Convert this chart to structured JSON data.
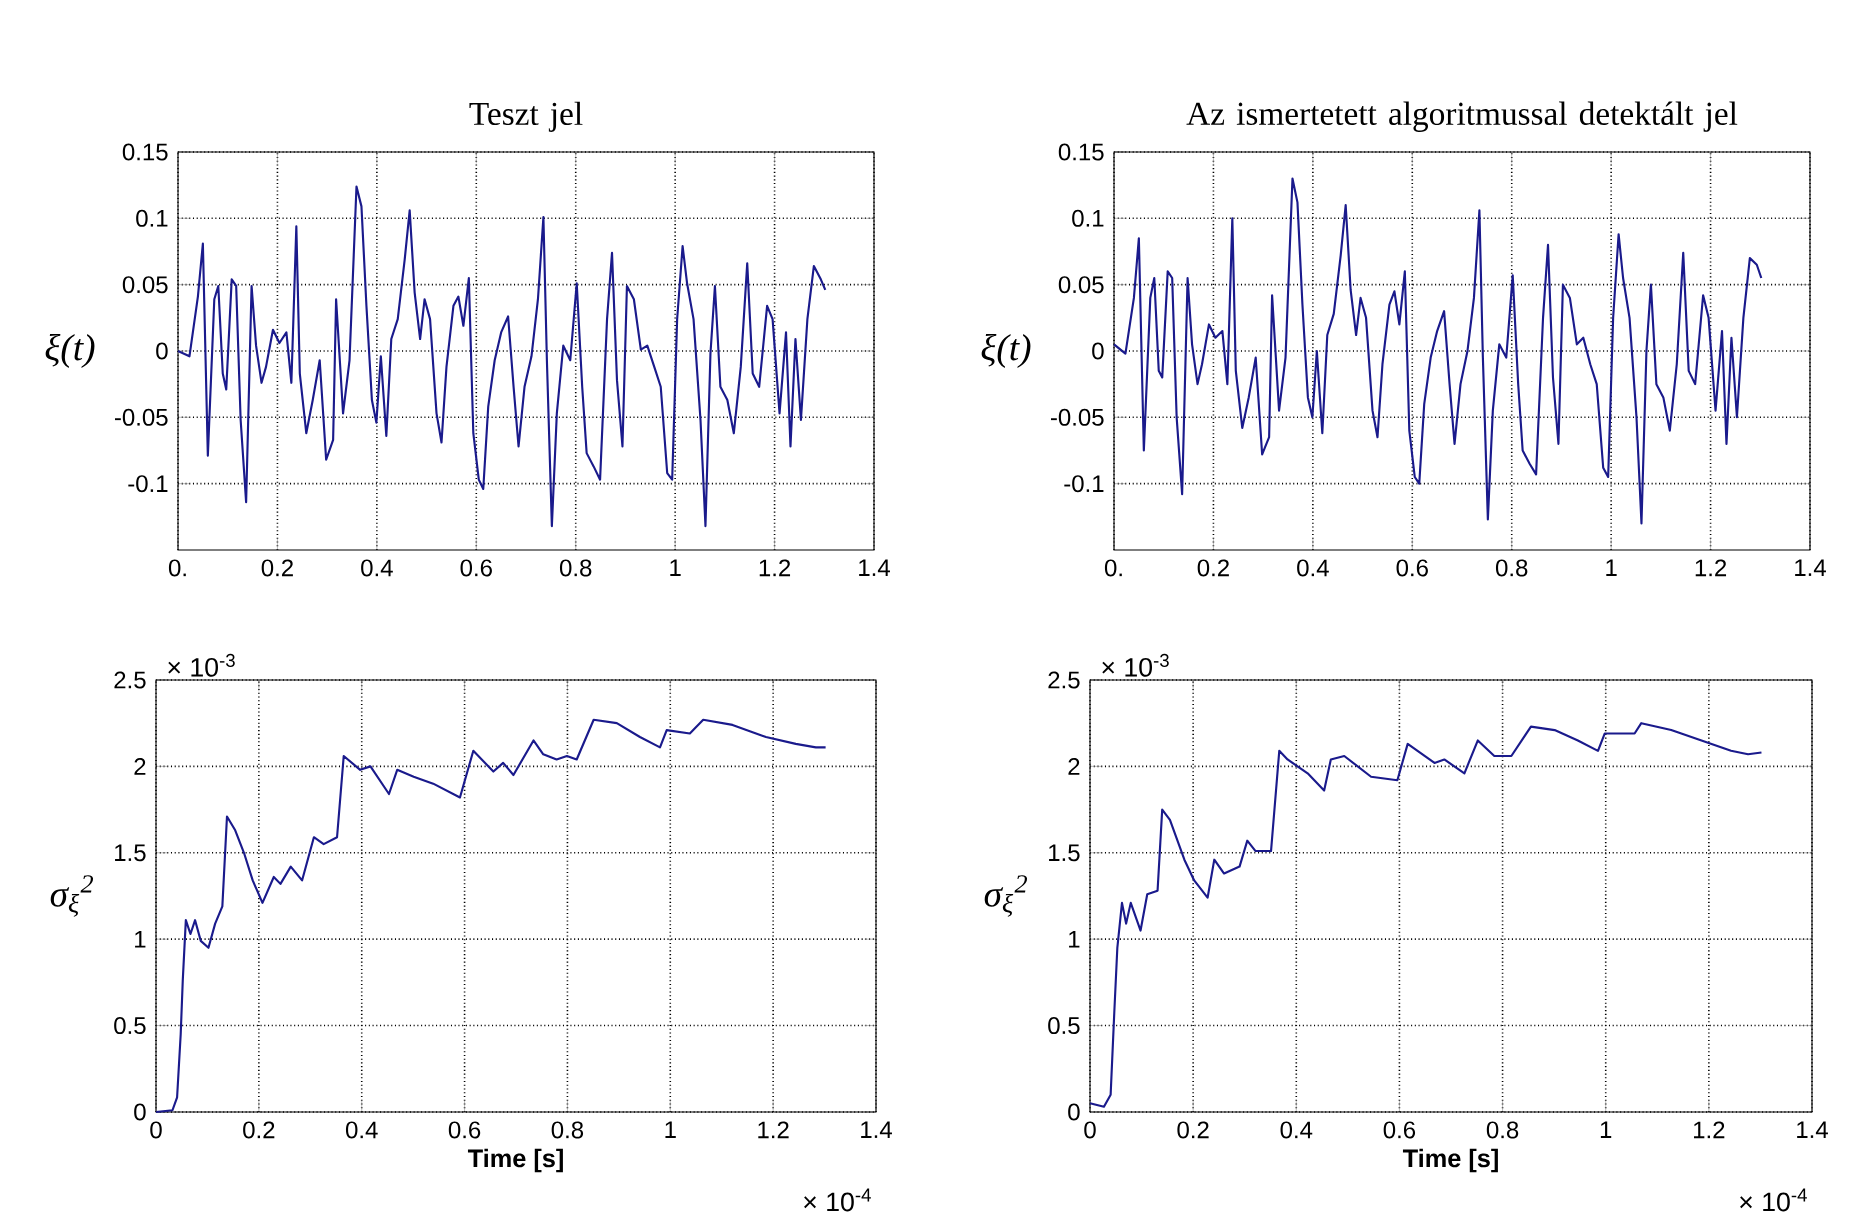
{
  "chart_data": [
    {
      "type": "line",
      "title": "Teszt jel",
      "ylabel": "ξ(t)",
      "grid": true,
      "xlim": [
        0,
        1.4
      ],
      "ylim": [
        -0.15,
        0.15
      ],
      "xticks": [
        {
          "value": 0,
          "label": "0."
        },
        0.2,
        0.4,
        0.6,
        0.8,
        1,
        1.2,
        1.4
      ],
      "yticks": [
        -0.1,
        -0.05,
        0,
        0.05,
        0.1,
        0.15
      ],
      "x": [
        0,
        0.023,
        0.04,
        0.05,
        0.06,
        0.073,
        0.081,
        0.09,
        0.097,
        0.108,
        0.117,
        0.126,
        0.137,
        0.148,
        0.157,
        0.168,
        0.177,
        0.191,
        0.204,
        0.218,
        0.228,
        0.238,
        0.245,
        0.258,
        0.271,
        0.285,
        0.298,
        0.312,
        0.318,
        0.332,
        0.345,
        0.359,
        0.369,
        0.379,
        0.39,
        0.399,
        0.408,
        0.419,
        0.429,
        0.442,
        0.456,
        0.466,
        0.476,
        0.487,
        0.496,
        0.507,
        0.52,
        0.53,
        0.54,
        0.554,
        0.564,
        0.574,
        0.585,
        0.594,
        0.605,
        0.614,
        0.624,
        0.637,
        0.65,
        0.664,
        0.675,
        0.685,
        0.697,
        0.711,
        0.724,
        0.735,
        0.742,
        0.752,
        0.762,
        0.775,
        0.789,
        0.802,
        0.813,
        0.822,
        0.836,
        0.849,
        0.863,
        0.873,
        0.883,
        0.894,
        0.903,
        0.917,
        0.931,
        0.944,
        0.958,
        0.971,
        0.984,
        0.994,
        1.004,
        1.015,
        1.024,
        1.037,
        1.051,
        1.061,
        1.071,
        1.08,
        1.091,
        1.105,
        1.118,
        1.132,
        1.145,
        1.156,
        1.169,
        1.185,
        1.196,
        1.21,
        1.223,
        1.232,
        1.242,
        1.253,
        1.266,
        1.279,
        1.293,
        1.302
      ],
      "series": [
        {
          "color": "#1a1a8c",
          "values": [
            0,
            -0.004,
            0.041,
            0.081,
            -0.079,
            0.039,
            0.049,
            -0.017,
            -0.029,
            0.054,
            0.049,
            -0.052,
            -0.114,
            0.049,
            0.004,
            -0.024,
            -0.012,
            0.016,
            0.006,
            0.014,
            -0.024,
            0.094,
            -0.017,
            -0.062,
            -0.037,
            -0.007,
            -0.082,
            -0.067,
            0.039,
            -0.047,
            -0.007,
            0.124,
            0.109,
            0.034,
            -0.037,
            -0.054,
            -0.004,
            -0.064,
            0.009,
            0.024,
            0.069,
            0.106,
            0.044,
            0.009,
            0.039,
            0.024,
            -0.047,
            -0.069,
            -0.012,
            0.034,
            0.041,
            0.019,
            0.055,
            -0.062,
            -0.097,
            -0.104,
            -0.042,
            -0.007,
            0.014,
            0.026,
            -0.027,
            -0.072,
            -0.027,
            -0.004,
            0.039,
            0.101,
            -0.007,
            -0.132,
            -0.047,
            0.004,
            -0.007,
            0.051,
            -0.027,
            -0.077,
            -0.087,
            -0.097,
            0.024,
            0.074,
            -0.022,
            -0.072,
            0.049,
            0.039,
            0.001,
            0.004,
            -0.012,
            -0.027,
            -0.092,
            -0.097,
            0.024,
            0.079,
            0.051,
            0.024,
            -0.052,
            -0.132,
            -0.002,
            0.049,
            -0.027,
            -0.037,
            -0.062,
            -0.012,
            0.066,
            -0.017,
            -0.027,
            0.034,
            0.024,
            -0.047,
            0.014,
            -0.072,
            0.009,
            -0.052,
            0.024,
            0.064,
            0.054,
            0.046
          ]
        }
      ]
    },
    {
      "type": "line",
      "title": "Az ismertetett algoritmussal detektált jel",
      "ylabel": "ξ(t)",
      "grid": true,
      "xlim": [
        0,
        1.4
      ],
      "ylim": [
        -0.15,
        0.15
      ],
      "xticks": [
        {
          "value": 0,
          "label": "0."
        },
        0.2,
        0.4,
        0.6,
        0.8,
        1,
        1.2,
        1.4
      ],
      "yticks": [
        -0.1,
        -0.05,
        0,
        0.05,
        0.1,
        0.15
      ],
      "x": [
        0,
        0.023,
        0.04,
        0.05,
        0.06,
        0.073,
        0.081,
        0.09,
        0.097,
        0.108,
        0.117,
        0.126,
        0.137,
        0.148,
        0.157,
        0.168,
        0.177,
        0.191,
        0.204,
        0.218,
        0.228,
        0.238,
        0.245,
        0.258,
        0.271,
        0.285,
        0.298,
        0.312,
        0.318,
        0.332,
        0.345,
        0.359,
        0.369,
        0.379,
        0.39,
        0.399,
        0.408,
        0.419,
        0.429,
        0.442,
        0.456,
        0.466,
        0.476,
        0.487,
        0.496,
        0.507,
        0.52,
        0.53,
        0.54,
        0.554,
        0.564,
        0.574,
        0.585,
        0.594,
        0.605,
        0.614,
        0.624,
        0.637,
        0.65,
        0.664,
        0.675,
        0.685,
        0.697,
        0.711,
        0.724,
        0.735,
        0.742,
        0.752,
        0.762,
        0.775,
        0.789,
        0.802,
        0.813,
        0.822,
        0.836,
        0.849,
        0.863,
        0.873,
        0.883,
        0.894,
        0.903,
        0.917,
        0.931,
        0.944,
        0.958,
        0.971,
        0.984,
        0.994,
        1.004,
        1.015,
        1.024,
        1.037,
        1.051,
        1.061,
        1.071,
        1.08,
        1.091,
        1.105,
        1.118,
        1.132,
        1.145,
        1.156,
        1.169,
        1.185,
        1.196,
        1.21,
        1.223,
        1.232,
        1.242,
        1.253,
        1.266,
        1.279,
        1.293,
        1.302
      ],
      "series": [
        {
          "color": "#1a1a8c",
          "values": [
            0.005,
            -0.002,
            0.04,
            0.085,
            -0.075,
            0.04,
            0.055,
            -0.015,
            -0.02,
            0.06,
            0.055,
            -0.05,
            -0.108,
            0.055,
            0.005,
            -0.025,
            -0.01,
            0.02,
            0.01,
            0.015,
            -0.025,
            0.1,
            -0.015,
            -0.058,
            -0.035,
            -0.005,
            -0.078,
            -0.065,
            0.042,
            -0.045,
            -0.005,
            0.13,
            0.112,
            0.035,
            -0.035,
            -0.05,
            0.0,
            -0.062,
            0.012,
            0.028,
            0.072,
            0.11,
            0.046,
            0.012,
            0.04,
            0.025,
            -0.045,
            -0.065,
            -0.01,
            0.035,
            0.045,
            0.02,
            0.06,
            -0.06,
            -0.095,
            -0.1,
            -0.04,
            -0.005,
            0.015,
            0.03,
            -0.025,
            -0.07,
            -0.025,
            0.0,
            0.04,
            0.106,
            -0.005,
            -0.127,
            -0.045,
            0.005,
            -0.005,
            0.057,
            -0.025,
            -0.075,
            -0.085,
            -0.093,
            0.025,
            0.08,
            -0.02,
            -0.07,
            0.05,
            0.04,
            0.005,
            0.01,
            -0.01,
            -0.025,
            -0.088,
            -0.095,
            0.025,
            0.088,
            0.055,
            0.025,
            -0.05,
            -0.13,
            0.0,
            0.05,
            -0.025,
            -0.035,
            -0.06,
            -0.01,
            0.074,
            -0.015,
            -0.025,
            0.042,
            0.025,
            -0.045,
            0.015,
            -0.07,
            0.01,
            -0.05,
            0.025,
            0.07,
            0.065,
            0.055
          ]
        }
      ]
    },
    {
      "type": "line",
      "xlabel": "Time [s]",
      "ylabel": "σ$_{ξ}$$^{2}$",
      "grid": true,
      "xlim": [
        0,
        1.4
      ],
      "ylim": [
        0,
        2.5
      ],
      "xticks": [
        0,
        0.2,
        0.4,
        0.6,
        0.8,
        1,
        1.2,
        1.4
      ],
      "yticks": [
        0,
        0.5,
        1,
        1.5,
        2,
        2.5
      ],
      "annotations": [
        "× 10$^{-3}$",
        "× 10$^{-4}$"
      ],
      "x": [
        0,
        0.032,
        0.041,
        0.048,
        0.052,
        0.058,
        0.067,
        0.076,
        0.087,
        0.102,
        0.115,
        0.129,
        0.138,
        0.154,
        0.171,
        0.188,
        0.207,
        0.229,
        0.242,
        0.262,
        0.284,
        0.307,
        0.326,
        0.352,
        0.365,
        0.397,
        0.417,
        0.453,
        0.469,
        0.501,
        0.539,
        0.591,
        0.617,
        0.656,
        0.675,
        0.695,
        0.734,
        0.753,
        0.779,
        0.799,
        0.818,
        0.851,
        0.896,
        0.941,
        0.98,
        0.993,
        1.038,
        1.064,
        1.121,
        1.186,
        1.244,
        1.283,
        1.302
      ],
      "series": [
        {
          "color": "#1a1a8c",
          "values": [
            0,
            0.01,
            0.085,
            0.45,
            0.76,
            1.11,
            1.03,
            1.11,
            0.99,
            0.95,
            1.09,
            1.19,
            1.71,
            1.63,
            1.5,
            1.34,
            1.21,
            1.36,
            1.32,
            1.42,
            1.34,
            1.59,
            1.55,
            1.59,
            2.06,
            1.98,
            2.0,
            1.84,
            1.98,
            1.94,
            1.9,
            1.82,
            2.09,
            1.97,
            2.02,
            1.95,
            2.15,
            2.07,
            2.04,
            2.06,
            2.04,
            2.27,
            2.25,
            2.17,
            2.11,
            2.21,
            2.19,
            2.27,
            2.24,
            2.17,
            2.13,
            2.11,
            2.11
          ]
        }
      ]
    },
    {
      "type": "line",
      "xlabel": "Time [s]",
      "ylabel": "σ$_{ξ}$$^{2}$",
      "grid": true,
      "xlim": [
        0,
        1.4
      ],
      "ylim": [
        0,
        2.5
      ],
      "xticks": [
        0,
        0.2,
        0.4,
        0.6,
        0.8,
        1,
        1.2,
        1.4
      ],
      "yticks": [
        0,
        0.5,
        1,
        1.5,
        2,
        2.5
      ],
      "annotations": [
        "× 10$^{-3}$",
        "× 10$^{-4}$"
      ],
      "x": [
        0,
        0.027,
        0.04,
        0.047,
        0.053,
        0.062,
        0.07,
        0.079,
        0.098,
        0.111,
        0.131,
        0.14,
        0.155,
        0.183,
        0.202,
        0.228,
        0.241,
        0.26,
        0.29,
        0.305,
        0.321,
        0.351,
        0.367,
        0.383,
        0.422,
        0.454,
        0.467,
        0.493,
        0.545,
        0.596,
        0.616,
        0.668,
        0.687,
        0.726,
        0.752,
        0.784,
        0.817,
        0.855,
        0.901,
        0.946,
        0.985,
        0.998,
        1.056,
        1.069,
        1.127,
        1.185,
        1.243,
        1.276,
        1.302
      ],
      "series": [
        {
          "color": "#1a1a8c",
          "values": [
            0.05,
            0.03,
            0.1,
            0.57,
            0.95,
            1.21,
            1.09,
            1.21,
            1.05,
            1.26,
            1.28,
            1.75,
            1.69,
            1.46,
            1.34,
            1.24,
            1.46,
            1.38,
            1.42,
            1.57,
            1.51,
            1.51,
            2.09,
            2.04,
            1.96,
            1.86,
            2.04,
            2.06,
            1.94,
            1.92,
            2.13,
            2.02,
            2.04,
            1.96,
            2.15,
            2.06,
            2.06,
            2.23,
            2.21,
            2.15,
            2.09,
            2.19,
            2.19,
            2.25,
            2.21,
            2.15,
            2.09,
            2.07,
            2.08
          ]
        }
      ]
    }
  ]
}
